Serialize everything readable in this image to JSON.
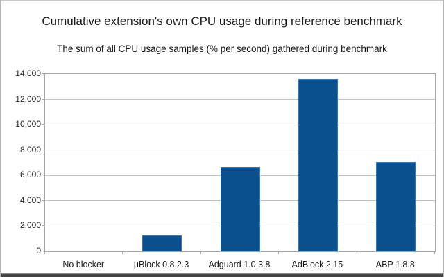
{
  "title": "Cumulative extension's own CPU usage during reference benchmark",
  "subtitle": "The sum of all CPU usage samples (% per second) gathered during benchmark",
  "chart_data": {
    "type": "bar",
    "title": "Cumulative extension's own CPU usage during reference benchmark",
    "subtitle": "The sum of all CPU usage samples (% per second) gathered during benchmark",
    "categories": [
      "No blocker",
      "µBlock 0.8.2.3",
      "Adguard 1.0.3.8",
      "AdBlock 2.15",
      "ABP 1.8.8"
    ],
    "values": [
      0,
      1250,
      6650,
      13600,
      7050
    ],
    "xlabel": "",
    "ylabel": "",
    "ylim": [
      0,
      14000
    ],
    "ytick_interval": 2000,
    "ytick_labels": [
      "0",
      "2,000",
      "4,000",
      "6,000",
      "8,000",
      "10,000",
      "12,000",
      "14,000"
    ],
    "grid": true,
    "legend": "none",
    "bar_color": "#0a4f8e",
    "bar_border_color": "#3a76ad",
    "gridline_color": "#c2c2c2",
    "axis_color": "#a6a6a6",
    "frame_bottom_bar_color": "#454549"
  }
}
